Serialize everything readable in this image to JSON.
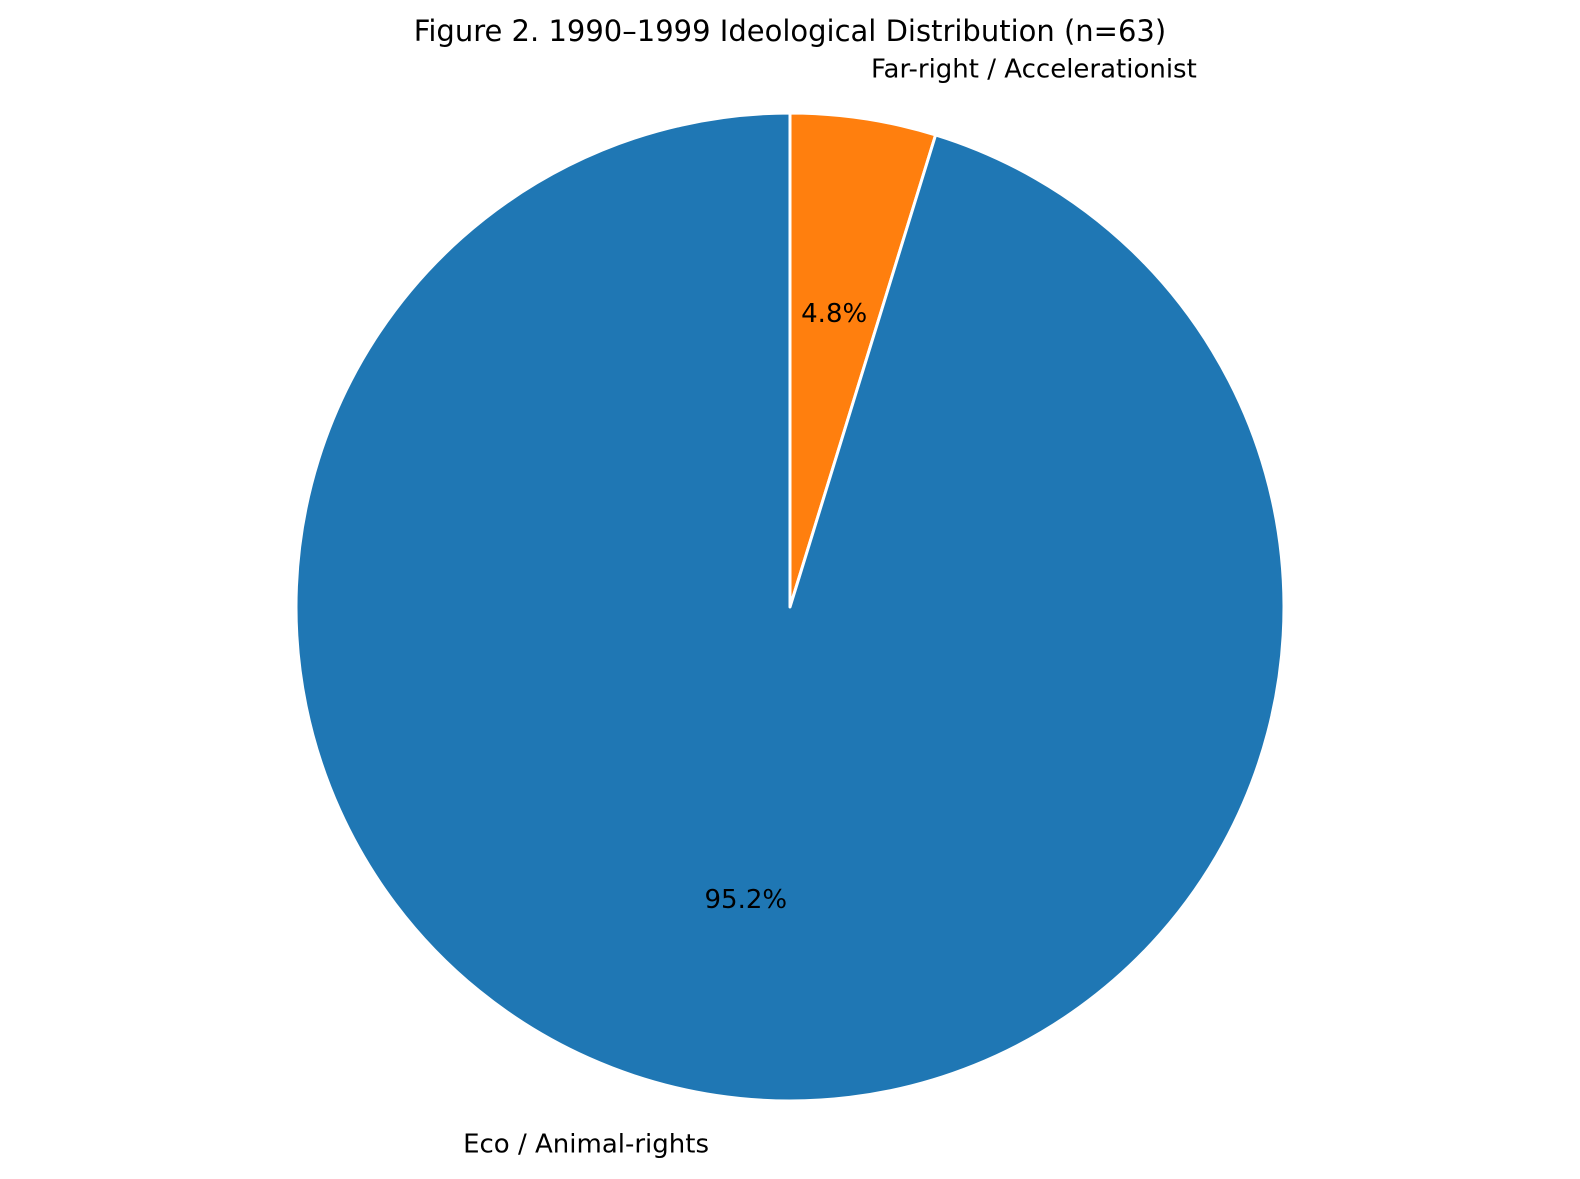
{
  "chart_data": {
    "type": "pie",
    "title": "Figure 2. 1990–1999 Ideological Distribution (n=63)",
    "slices": [
      {
        "label": "Far-right / Accelerationist",
        "value": 3,
        "percent_label": "4.8%",
        "color": "#ff7f0e"
      },
      {
        "label": "Eco / Animal-rights",
        "value": 60,
        "percent_label": "95.2%",
        "color": "#1f77b4"
      }
    ],
    "start_angle_deg": 90,
    "direction": "clockwise",
    "edge_color": "#ffffff"
  }
}
